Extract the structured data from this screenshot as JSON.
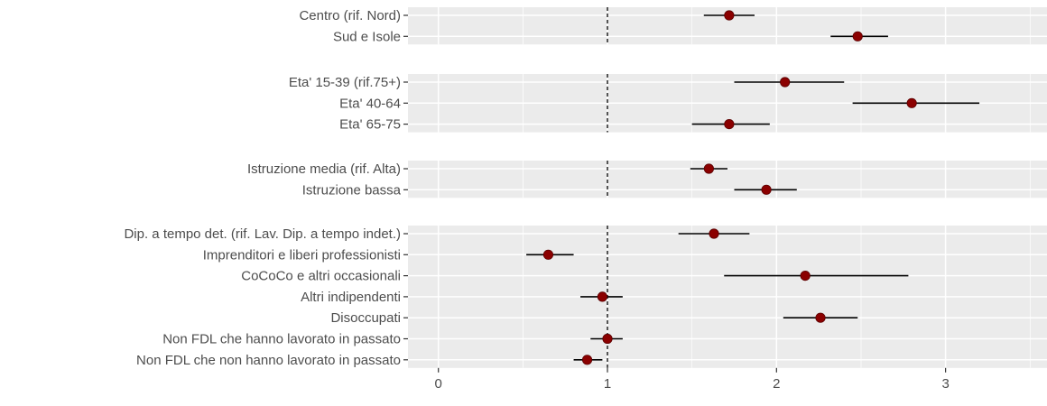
{
  "chart_data": {
    "type": "scatter",
    "subtype": "forest-plot",
    "title": "",
    "xlabel": "",
    "ylabel": "",
    "xlim": [
      -0.18,
      3.6
    ],
    "x_ticks": [
      0,
      1,
      2,
      3
    ],
    "reference_line": 1,
    "grid": true,
    "legend": "none",
    "colors": {
      "panel": "#ebebeb",
      "grid": "#ffffff",
      "point": "#8b0000",
      "whisker": "#000000",
      "reference": "#000000"
    },
    "panels": [
      {
        "rows": [
          {
            "label": "Centro (rif. Nord)",
            "estimate": 1.72,
            "lower": 1.57,
            "upper": 1.87
          },
          {
            "label": "Sud e Isole",
            "estimate": 2.48,
            "lower": 2.32,
            "upper": 2.66
          }
        ]
      },
      {
        "rows": [
          {
            "label": "Eta' 15-39 (rif.75+)",
            "estimate": 2.05,
            "lower": 1.75,
            "upper": 2.4
          },
          {
            "label": "Eta' 40-64",
            "estimate": 2.8,
            "lower": 2.45,
            "upper": 3.2
          },
          {
            "label": "Eta' 65-75",
            "estimate": 1.72,
            "lower": 1.5,
            "upper": 1.96
          }
        ]
      },
      {
        "rows": [
          {
            "label": "Istruzione media (rif. Alta)",
            "estimate": 1.6,
            "lower": 1.49,
            "upper": 1.71
          },
          {
            "label": "Istruzione bassa",
            "estimate": 1.94,
            "lower": 1.75,
            "upper": 2.12
          }
        ]
      },
      {
        "rows": [
          {
            "label": "Dip. a tempo det. (rif. Lav. Dip. a tempo indet.)",
            "estimate": 1.63,
            "lower": 1.42,
            "upper": 1.84
          },
          {
            "label": "Imprenditori e liberi professionisti",
            "estimate": 0.65,
            "lower": 0.52,
            "upper": 0.8
          },
          {
            "label": "CoCoCo e altri occasionali",
            "estimate": 2.17,
            "lower": 1.69,
            "upper": 2.78
          },
          {
            "label": "Altri indipendenti",
            "estimate": 0.97,
            "lower": 0.84,
            "upper": 1.09
          },
          {
            "label": "Disoccupati",
            "estimate": 2.26,
            "lower": 2.04,
            "upper": 2.48
          },
          {
            "label": "Non FDL che hanno lavorato in passato",
            "estimate": 1.0,
            "lower": 0.9,
            "upper": 1.09
          },
          {
            "label": "Non FDL che non hanno lavorato in passato",
            "estimate": 0.88,
            "lower": 0.8,
            "upper": 0.97
          }
        ]
      }
    ]
  }
}
